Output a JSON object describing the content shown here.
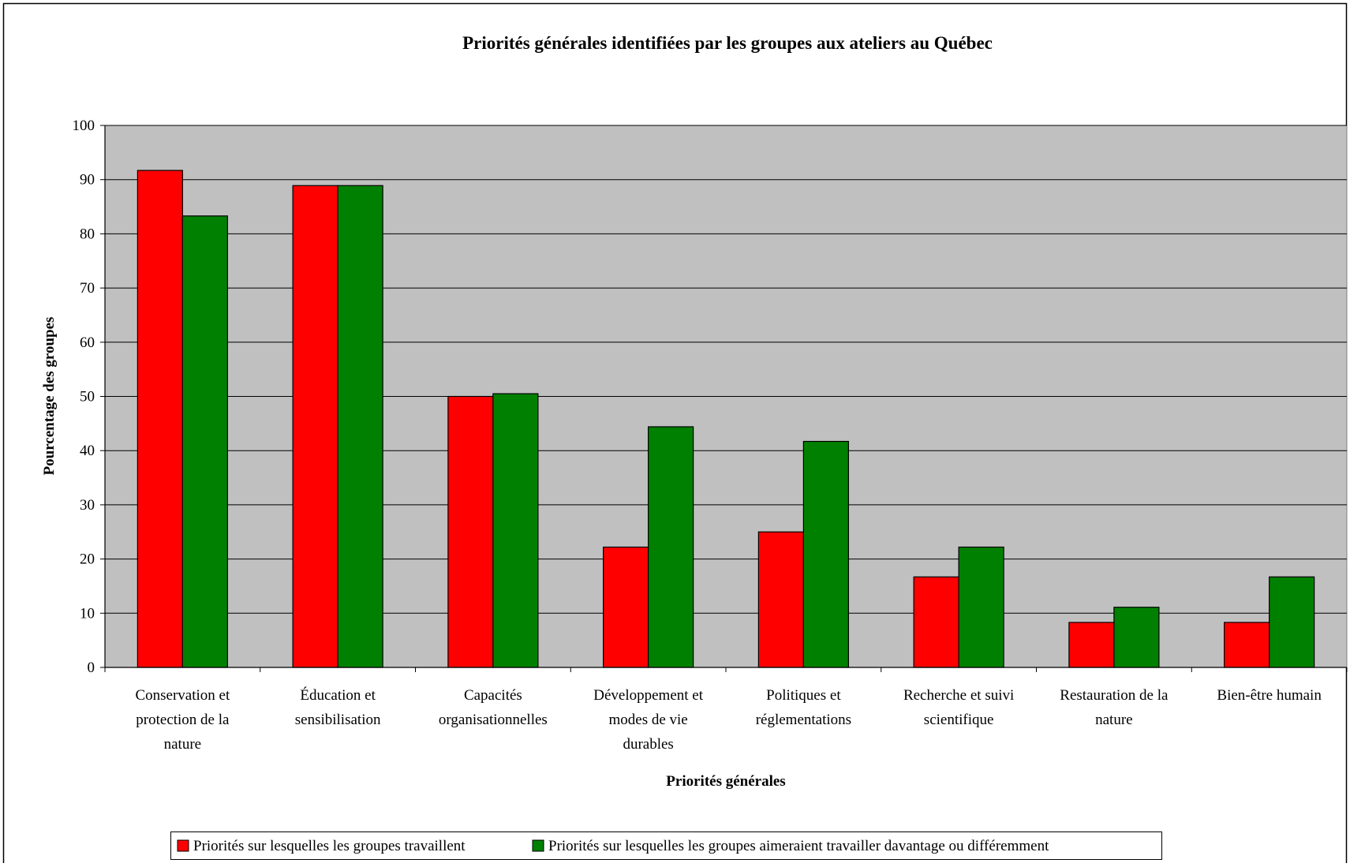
{
  "chart_data": {
    "type": "bar",
    "title": "Priorités générales identifiées par les groupes aux ateliers au Québec",
    "xlabel": "Priorités générales",
    "ylabel": "Pourcentage des groupes",
    "ylim": [
      0,
      100
    ],
    "yticks": [
      "0",
      "10",
      "20",
      "30",
      "40",
      "50",
      "60",
      "70",
      "80",
      "90",
      "100"
    ],
    "grid": true,
    "legend_position": "bottom",
    "plot_background": "#c0c0c0",
    "categories": [
      [
        "Conservation et",
        "protection de la",
        "nature"
      ],
      [
        "Éducation et",
        "sensibilisation"
      ],
      [
        "Capacités",
        "organisationnelles"
      ],
      [
        "Développement et",
        "modes de vie",
        "durables"
      ],
      [
        "Politiques et",
        "réglementations"
      ],
      [
        "Recherche et suivi",
        "scientifique"
      ],
      [
        "Restauration de la",
        "nature"
      ],
      [
        "Bien-être humain"
      ]
    ],
    "series": [
      {
        "name": "Priorités sur lesquelles les groupes travaillent",
        "color": "#ff0000",
        "values": [
          91.7,
          88.9,
          50,
          22.2,
          25,
          16.7,
          8.3,
          8.3
        ]
      },
      {
        "name": "Priorités sur lesquelles les groupes aimeraient travailler davantage ou différemment",
        "color": "#008000",
        "values": [
          83.3,
          88.9,
          50.5,
          44.4,
          41.7,
          22.2,
          11.1,
          16.7
        ]
      }
    ]
  }
}
